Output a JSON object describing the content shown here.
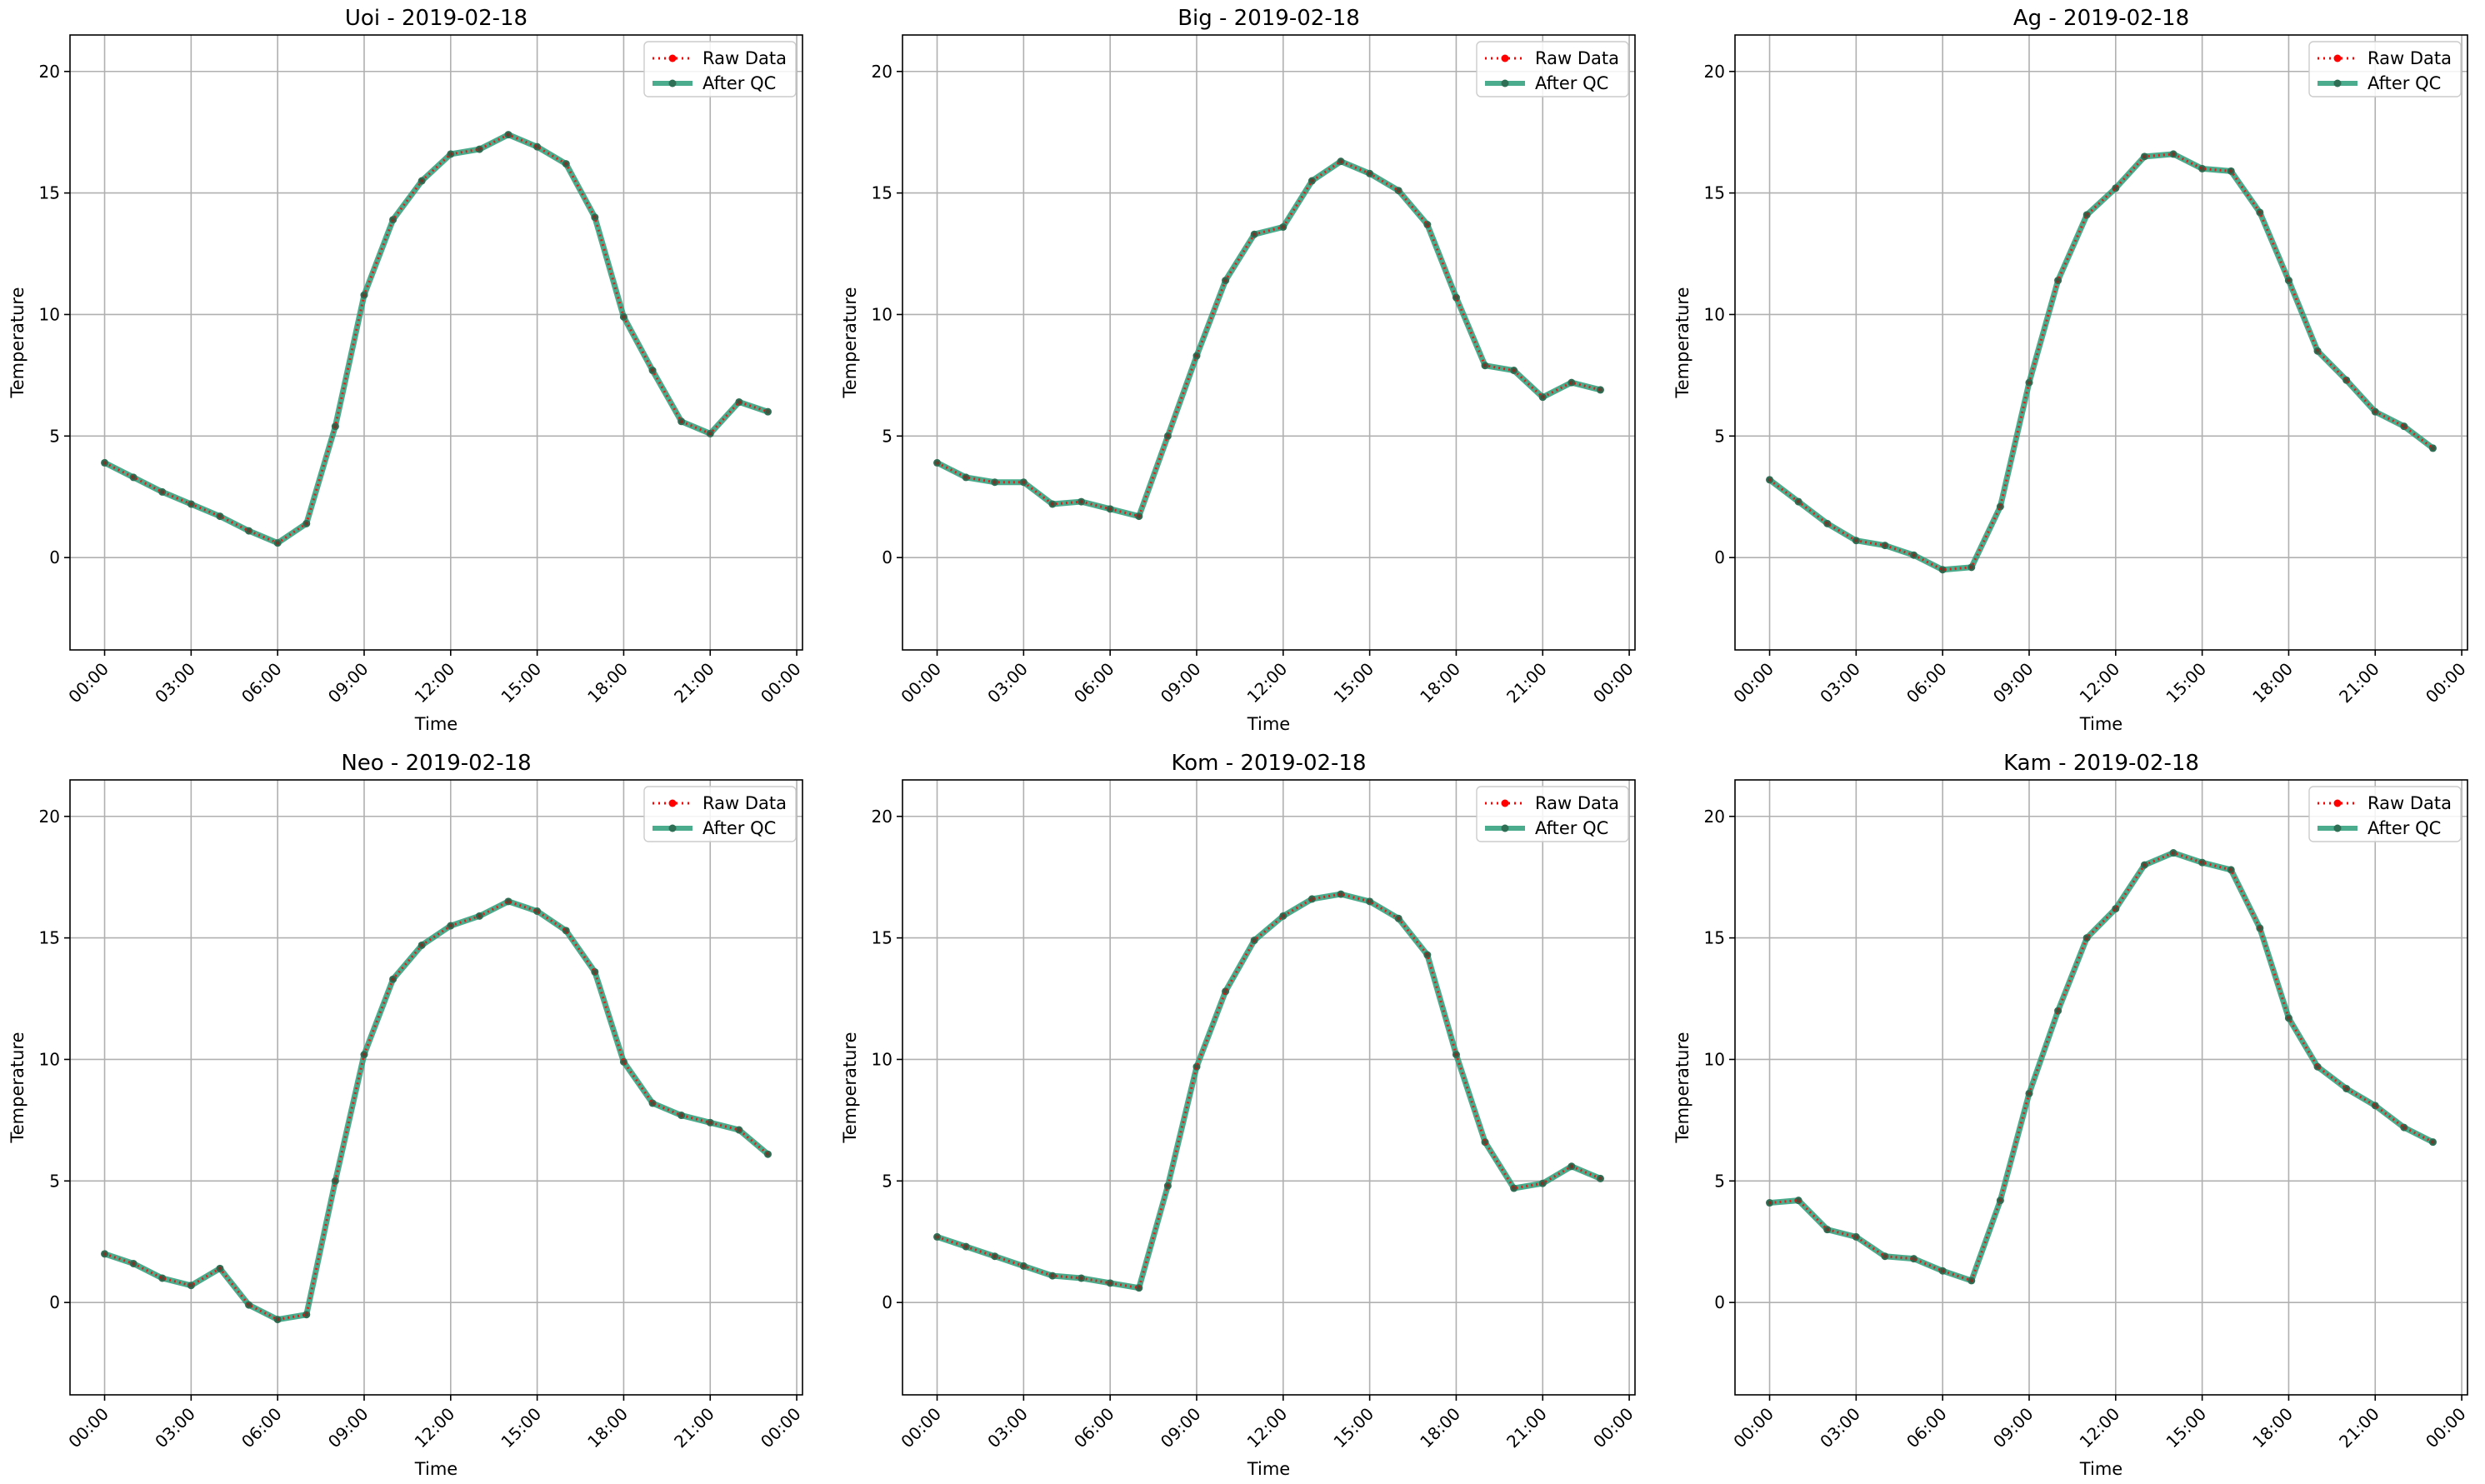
{
  "chart_data": [
    {
      "type": "line",
      "title": "Uoi - 2019-02-18",
      "xlabel": "Time",
      "ylabel": "Temperature",
      "xticks": [
        "00:00",
        "03:00",
        "06:00",
        "09:00",
        "12:00",
        "15:00",
        "18:00",
        "21:00",
        "00:00"
      ],
      "yticks": [
        0,
        5,
        10,
        15,
        20
      ],
      "xlim_hours": [
        -1.2,
        24.2
      ],
      "ylim": [
        -3.8,
        21.5
      ],
      "grid": true,
      "legend_position": "upper right",
      "x_hours": [
        0,
        1,
        2,
        3,
        4,
        5,
        6,
        7,
        8,
        9,
        10,
        11,
        12,
        13,
        14,
        15,
        16,
        17,
        18,
        19,
        20,
        21,
        22,
        23
      ],
      "series": [
        {
          "name": "Raw Data",
          "color": "#ff0000",
          "style": "dotted-marker",
          "values": [
            3.9,
            3.3,
            2.7,
            2.2,
            1.7,
            1.1,
            0.6,
            1.4,
            5.4,
            10.8,
            13.9,
            15.5,
            16.6,
            16.8,
            17.4,
            16.9,
            16.2,
            14.0,
            9.9,
            7.7,
            5.6,
            5.1,
            6.4,
            6.0
          ]
        },
        {
          "name": "After QC",
          "color": "#2a9d78",
          "style": "solid-marker",
          "values": [
            3.9,
            3.3,
            2.7,
            2.2,
            1.7,
            1.1,
            0.6,
            1.4,
            5.4,
            10.8,
            13.9,
            15.5,
            16.6,
            16.8,
            17.4,
            16.9,
            16.2,
            14.0,
            9.9,
            7.7,
            5.6,
            5.1,
            6.4,
            6.0
          ]
        }
      ]
    },
    {
      "type": "line",
      "title": "Big - 2019-02-18",
      "xlabel": "Time",
      "ylabel": "Temperature",
      "xticks": [
        "00:00",
        "03:00",
        "06:00",
        "09:00",
        "12:00",
        "15:00",
        "18:00",
        "21:00",
        "00:00"
      ],
      "yticks": [
        0,
        5,
        10,
        15,
        20
      ],
      "xlim_hours": [
        -1.2,
        24.2
      ],
      "ylim": [
        -3.8,
        21.5
      ],
      "grid": true,
      "legend_position": "upper right",
      "x_hours": [
        0,
        1,
        2,
        3,
        4,
        5,
        6,
        7,
        8,
        9,
        10,
        11,
        12,
        13,
        14,
        15,
        16,
        17,
        18,
        19,
        20,
        21,
        22,
        23
      ],
      "series": [
        {
          "name": "Raw Data",
          "color": "#ff0000",
          "style": "dotted-marker",
          "values": [
            3.9,
            3.3,
            3.1,
            3.1,
            2.2,
            2.3,
            2.0,
            1.7,
            5.0,
            8.3,
            11.4,
            13.3,
            13.6,
            15.5,
            16.3,
            15.8,
            15.1,
            13.7,
            10.7,
            7.9,
            7.7,
            6.6,
            7.2,
            6.9
          ]
        },
        {
          "name": "After QC",
          "color": "#2a9d78",
          "style": "solid-marker",
          "values": [
            3.9,
            3.3,
            3.1,
            3.1,
            2.2,
            2.3,
            2.0,
            1.7,
            5.0,
            8.3,
            11.4,
            13.3,
            13.6,
            15.5,
            16.3,
            15.8,
            15.1,
            13.7,
            10.7,
            7.9,
            7.7,
            6.6,
            7.2,
            6.9
          ]
        }
      ]
    },
    {
      "type": "line",
      "title": "Ag - 2019-02-18",
      "xlabel": "Time",
      "ylabel": "Temperature",
      "xticks": [
        "00:00",
        "03:00",
        "06:00",
        "09:00",
        "12:00",
        "15:00",
        "18:00",
        "21:00",
        "00:00"
      ],
      "yticks": [
        0,
        5,
        10,
        15,
        20
      ],
      "xlim_hours": [
        -1.2,
        24.2
      ],
      "ylim": [
        -3.8,
        21.5
      ],
      "grid": true,
      "legend_position": "upper right",
      "x_hours": [
        0,
        1,
        2,
        3,
        4,
        5,
        6,
        7,
        8,
        9,
        10,
        11,
        12,
        13,
        14,
        15,
        16,
        17,
        18,
        19,
        20,
        21,
        22,
        23
      ],
      "series": [
        {
          "name": "Raw Data",
          "color": "#ff0000",
          "style": "dotted-marker",
          "values": [
            3.2,
            2.3,
            1.4,
            0.7,
            0.5,
            0.1,
            -0.5,
            -0.4,
            2.1,
            7.2,
            11.4,
            14.1,
            15.2,
            16.5,
            16.6,
            16.0,
            15.9,
            14.2,
            11.4,
            8.5,
            7.3,
            6.0,
            5.4,
            4.5
          ]
        },
        {
          "name": "After QC",
          "color": "#2a9d78",
          "style": "solid-marker",
          "values": [
            3.2,
            2.3,
            1.4,
            0.7,
            0.5,
            0.1,
            -0.5,
            -0.4,
            2.1,
            7.2,
            11.4,
            14.1,
            15.2,
            16.5,
            16.6,
            16.0,
            15.9,
            14.2,
            11.4,
            8.5,
            7.3,
            6.0,
            5.4,
            4.5
          ]
        }
      ]
    },
    {
      "type": "line",
      "title": "Neo - 2019-02-18",
      "xlabel": "Time",
      "ylabel": "Temperature",
      "xticks": [
        "00:00",
        "03:00",
        "06:00",
        "09:00",
        "12:00",
        "15:00",
        "18:00",
        "21:00",
        "00:00"
      ],
      "yticks": [
        0,
        5,
        10,
        15,
        20
      ],
      "xlim_hours": [
        -1.2,
        24.2
      ],
      "ylim": [
        -3.8,
        21.5
      ],
      "grid": true,
      "legend_position": "upper right",
      "x_hours": [
        0,
        1,
        2,
        3,
        4,
        5,
        6,
        7,
        8,
        9,
        10,
        11,
        12,
        13,
        14,
        15,
        16,
        17,
        18,
        19,
        20,
        21,
        22,
        23
      ],
      "series": [
        {
          "name": "Raw Data",
          "color": "#ff0000",
          "style": "dotted-marker",
          "values": [
            2.0,
            1.6,
            1.0,
            0.7,
            1.4,
            -0.1,
            -0.7,
            -0.5,
            5.0,
            10.2,
            13.3,
            14.7,
            15.5,
            15.9,
            16.5,
            16.1,
            15.3,
            13.6,
            9.9,
            8.2,
            7.7,
            7.4,
            7.1,
            6.1
          ]
        },
        {
          "name": "After QC",
          "color": "#2a9d78",
          "style": "solid-marker",
          "values": [
            2.0,
            1.6,
            1.0,
            0.7,
            1.4,
            -0.1,
            -0.7,
            -0.5,
            5.0,
            10.2,
            13.3,
            14.7,
            15.5,
            15.9,
            16.5,
            16.1,
            15.3,
            13.6,
            9.9,
            8.2,
            7.7,
            7.4,
            7.1,
            6.1
          ]
        }
      ]
    },
    {
      "type": "line",
      "title": "Kom - 2019-02-18",
      "xlabel": "Time",
      "ylabel": "Temperature",
      "xticks": [
        "00:00",
        "03:00",
        "06:00",
        "09:00",
        "12:00",
        "15:00",
        "18:00",
        "21:00",
        "00:00"
      ],
      "yticks": [
        0,
        5,
        10,
        15,
        20
      ],
      "xlim_hours": [
        -1.2,
        24.2
      ],
      "ylim": [
        -3.8,
        21.5
      ],
      "grid": true,
      "legend_position": "upper right",
      "x_hours": [
        0,
        1,
        2,
        3,
        4,
        5,
        6,
        7,
        8,
        9,
        10,
        11,
        12,
        13,
        14,
        15,
        16,
        17,
        18,
        19,
        20,
        21,
        22,
        23
      ],
      "series": [
        {
          "name": "Raw Data",
          "color": "#ff0000",
          "style": "dotted-marker",
          "values": [
            2.7,
            2.3,
            1.9,
            1.5,
            1.1,
            1.0,
            0.8,
            0.6,
            4.8,
            9.7,
            12.8,
            14.9,
            15.9,
            16.6,
            16.8,
            16.5,
            15.8,
            14.3,
            10.2,
            6.6,
            4.7,
            4.9,
            5.6,
            5.1
          ]
        },
        {
          "name": "After QC",
          "color": "#2a9d78",
          "style": "solid-marker",
          "values": [
            2.7,
            2.3,
            1.9,
            1.5,
            1.1,
            1.0,
            0.8,
            0.6,
            4.8,
            9.7,
            12.8,
            14.9,
            15.9,
            16.6,
            16.8,
            16.5,
            15.8,
            14.3,
            10.2,
            6.6,
            4.7,
            4.9,
            5.6,
            5.1
          ]
        }
      ]
    },
    {
      "type": "line",
      "title": "Kam - 2019-02-18",
      "xlabel": "Time",
      "ylabel": "Temperature",
      "xticks": [
        "00:00",
        "03:00",
        "06:00",
        "09:00",
        "12:00",
        "15:00",
        "18:00",
        "21:00",
        "00:00"
      ],
      "yticks": [
        0,
        5,
        10,
        15,
        20
      ],
      "xlim_hours": [
        -1.2,
        24.2
      ],
      "ylim": [
        -3.8,
        21.5
      ],
      "grid": true,
      "legend_position": "upper right",
      "x_hours": [
        0,
        1,
        2,
        3,
        4,
        5,
        6,
        7,
        8,
        9,
        10,
        11,
        12,
        13,
        14,
        15,
        16,
        17,
        18,
        19,
        20,
        21,
        22,
        23
      ],
      "series": [
        {
          "name": "Raw Data",
          "color": "#ff0000",
          "style": "dotted-marker",
          "values": [
            4.1,
            4.2,
            3.0,
            2.7,
            1.9,
            1.8,
            1.3,
            0.9,
            4.2,
            8.6,
            12.0,
            15.0,
            16.2,
            18.0,
            18.5,
            18.1,
            17.8,
            15.4,
            11.7,
            9.7,
            8.8,
            8.1,
            7.2,
            6.6
          ]
        },
        {
          "name": "After QC",
          "color": "#2a9d78",
          "style": "solid-marker",
          "values": [
            4.1,
            4.2,
            3.0,
            2.7,
            1.9,
            1.8,
            1.3,
            0.9,
            4.2,
            8.6,
            12.0,
            15.0,
            16.2,
            18.0,
            18.5,
            18.1,
            17.8,
            15.4,
            11.7,
            9.7,
            8.8,
            8.1,
            7.2,
            6.6
          ]
        }
      ]
    }
  ]
}
